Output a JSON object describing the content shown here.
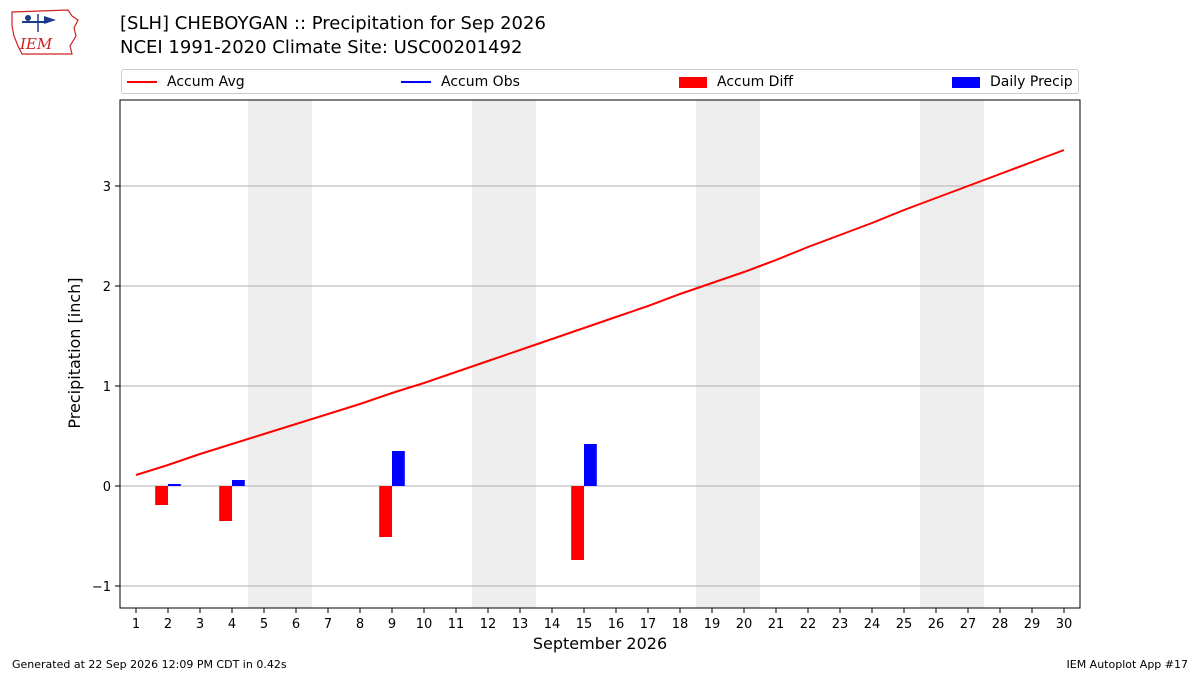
{
  "header": {
    "title_line1": "[SLH] CHEBOYGAN :: Precipitation for Sep 2026",
    "title_line2": "NCEI 1991-2020 Climate Site: USC00201492",
    "logo_text": "IEM"
  },
  "legend": {
    "avg": "Accum Avg",
    "obs": "Accum Obs",
    "diff": "Accum Diff",
    "daily": "Daily Precip"
  },
  "colors": {
    "avg": "#ff0000",
    "obs": "#0000ff",
    "diff": "#ff0000",
    "daily": "#0000ff",
    "weekend": "#eeeeee",
    "grid": "#b0b0b0"
  },
  "footer": {
    "left": "Generated at 22 Sep 2026 12:09 PM CDT in 0.42s",
    "right": "IEM Autoplot App #17"
  },
  "chart_data": {
    "type": "bar",
    "xlabel": "September 2026",
    "ylabel": "Precipitation [inch]",
    "days": [
      1,
      2,
      3,
      4,
      5,
      6,
      7,
      8,
      9,
      10,
      11,
      12,
      13,
      14,
      15,
      16,
      17,
      18,
      19,
      20,
      21,
      22,
      23,
      24,
      25,
      26,
      27,
      28,
      29,
      30
    ],
    "xlim": [
      0.5,
      30.5
    ],
    "ylim": [
      -1.22,
      3.86
    ],
    "yticks": [
      -1,
      0,
      1,
      2,
      3
    ],
    "ytick_labels": [
      "−1",
      "0",
      "1",
      "2",
      "3"
    ],
    "weekend_days": [
      5,
      6,
      12,
      13,
      19,
      20,
      26,
      27
    ],
    "grid": "horizontal",
    "accum_avg": [
      0.11,
      0.21,
      0.32,
      0.42,
      0.52,
      0.62,
      0.72,
      0.82,
      0.93,
      1.03,
      1.14,
      1.25,
      1.36,
      1.47,
      1.58,
      1.69,
      1.8,
      1.92,
      2.03,
      2.14,
      2.26,
      2.39,
      2.51,
      2.63,
      2.76,
      2.88,
      3.0,
      3.12,
      3.24,
      3.36
    ],
    "accum_diff": [
      {
        "day": 2,
        "value": -0.19
      },
      {
        "day": 4,
        "value": -0.35
      },
      {
        "day": 9,
        "value": -0.51
      },
      {
        "day": 15,
        "value": -0.74
      }
    ],
    "daily_precip": [
      {
        "day": 2,
        "value": 0.02
      },
      {
        "day": 4,
        "value": 0.06
      },
      {
        "day": 9,
        "value": 0.35
      },
      {
        "day": 15,
        "value": 0.42
      }
    ]
  }
}
